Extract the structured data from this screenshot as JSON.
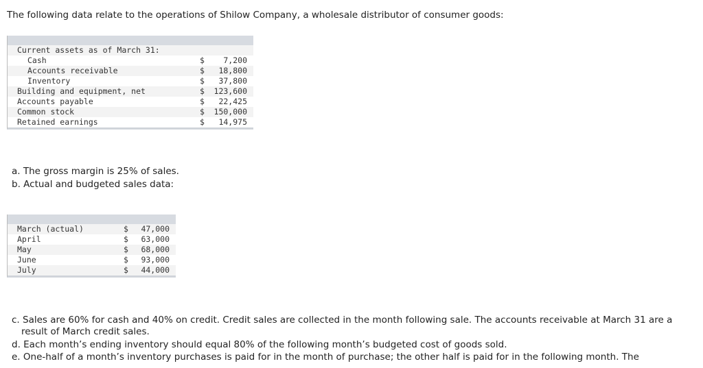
{
  "intro": "The following data relate to the operations of Shilow Company, a wholesale distributor of consumer goods:",
  "balance_table": {
    "heading": "Current assets as of March 31:",
    "rows": [
      [
        "Cash",
        "$",
        "7,200"
      ],
      [
        "Accounts receivable",
        "$",
        "18,800"
      ],
      [
        "Inventory",
        "$",
        "37,800"
      ],
      [
        "Building and equipment, net",
        "$",
        "123,600"
      ],
      [
        "Accounts payable",
        "$",
        "22,425"
      ],
      [
        "Common stock",
        "$",
        "150,000"
      ],
      [
        "Retained earnings",
        "$",
        "14,975"
      ]
    ]
  },
  "items_ab": [
    "a. The gross margin is 25% of sales.",
    "b. Actual and budgeted sales data:"
  ],
  "sales_table": {
    "rows": [
      [
        "March (actual)",
        "$",
        "47,000"
      ],
      [
        "April",
        "$",
        "63,000"
      ],
      [
        "May",
        "$",
        "68,000"
      ],
      [
        "June",
        "$",
        "93,000"
      ],
      [
        "July",
        "$",
        "44,000"
      ]
    ]
  },
  "items_cde": [
    "c. Sales are 60% for cash and 40% on credit. Credit sales are collected in the month following sale. The accounts receivable at March 31 are a result of March credit sales.",
    "d. Each month’s ending inventory should equal 80% of the following month’s budgeted cost of goods sold.",
    "e. One-half of a month’s inventory purchases is paid for in the month of purchase; the other half is paid for in the following month. The"
  ]
}
